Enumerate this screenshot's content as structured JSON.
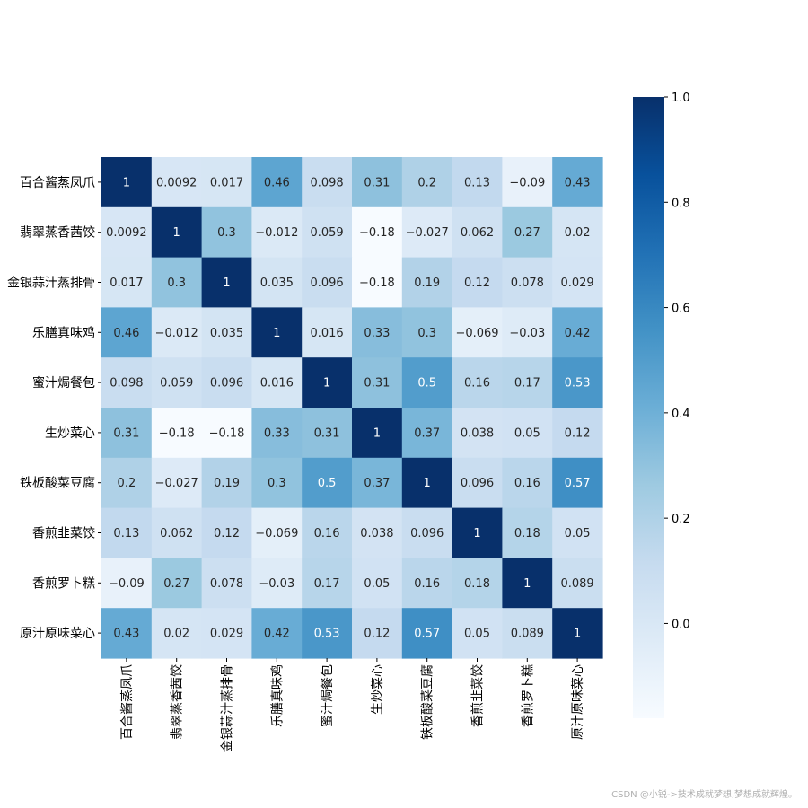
{
  "chart_data": {
    "type": "heatmap",
    "title": "",
    "xlabel": "",
    "ylabel": "",
    "row_labels": [
      "百合酱蒸凤爪",
      "翡翠蒸香茜饺",
      "金银蒜汁蒸排骨",
      "乐膳真味鸡",
      "蜜汁焗餐包",
      "生炒菜心",
      "铁板酸菜豆腐",
      "香煎韭菜饺",
      "香煎罗卜糕",
      "原汁原味菜心"
    ],
    "col_labels": [
      "百合酱蒸凤爪",
      "翡翠蒸香茜饺",
      "金银蒜汁蒸排骨",
      "乐膳真味鸡",
      "蜜汁焗餐包",
      "生炒菜心",
      "铁板酸菜豆腐",
      "香煎韭菜饺",
      "香煎罗卜糕",
      "原汁原味菜心"
    ],
    "values": [
      [
        1,
        0.0092,
        0.017,
        0.46,
        0.098,
        0.31,
        0.2,
        0.13,
        -0.09,
        0.43
      ],
      [
        0.0092,
        1,
        0.3,
        -0.012,
        0.059,
        -0.18,
        -0.027,
        0.062,
        0.27,
        0.02
      ],
      [
        0.017,
        0.3,
        1,
        0.035,
        0.096,
        -0.18,
        0.19,
        0.12,
        0.078,
        0.029
      ],
      [
        0.46,
        -0.012,
        0.035,
        1,
        0.016,
        0.33,
        0.3,
        -0.069,
        -0.03,
        0.42
      ],
      [
        0.098,
        0.059,
        0.096,
        0.016,
        1,
        0.31,
        0.5,
        0.16,
        0.17,
        0.53
      ],
      [
        0.31,
        -0.18,
        -0.18,
        0.33,
        0.31,
        1,
        0.37,
        0.038,
        0.05,
        0.12
      ],
      [
        0.2,
        -0.027,
        0.19,
        0.3,
        0.5,
        0.37,
        1,
        0.096,
        0.16,
        0.57
      ],
      [
        0.13,
        0.062,
        0.12,
        -0.069,
        0.16,
        0.038,
        0.096,
        1,
        0.18,
        0.05
      ],
      [
        -0.09,
        0.27,
        0.078,
        -0.03,
        0.17,
        0.05,
        0.16,
        0.18,
        1,
        0.089
      ],
      [
        0.43,
        0.02,
        0.029,
        0.42,
        0.53,
        0.12,
        0.57,
        0.05,
        0.089,
        1
      ]
    ],
    "colormap": "Blues",
    "vmin": -0.18,
    "vmax": 1,
    "colorbar_ticks": [
      "1.0",
      "0.8",
      "0.6",
      "0.4",
      "0.2",
      "0.0"
    ],
    "annotated": true,
    "grid": false,
    "legend": "colorbar right"
  },
  "watermark": "CSDN @小锐->技术成就梦想,梦想成就辉煌。"
}
